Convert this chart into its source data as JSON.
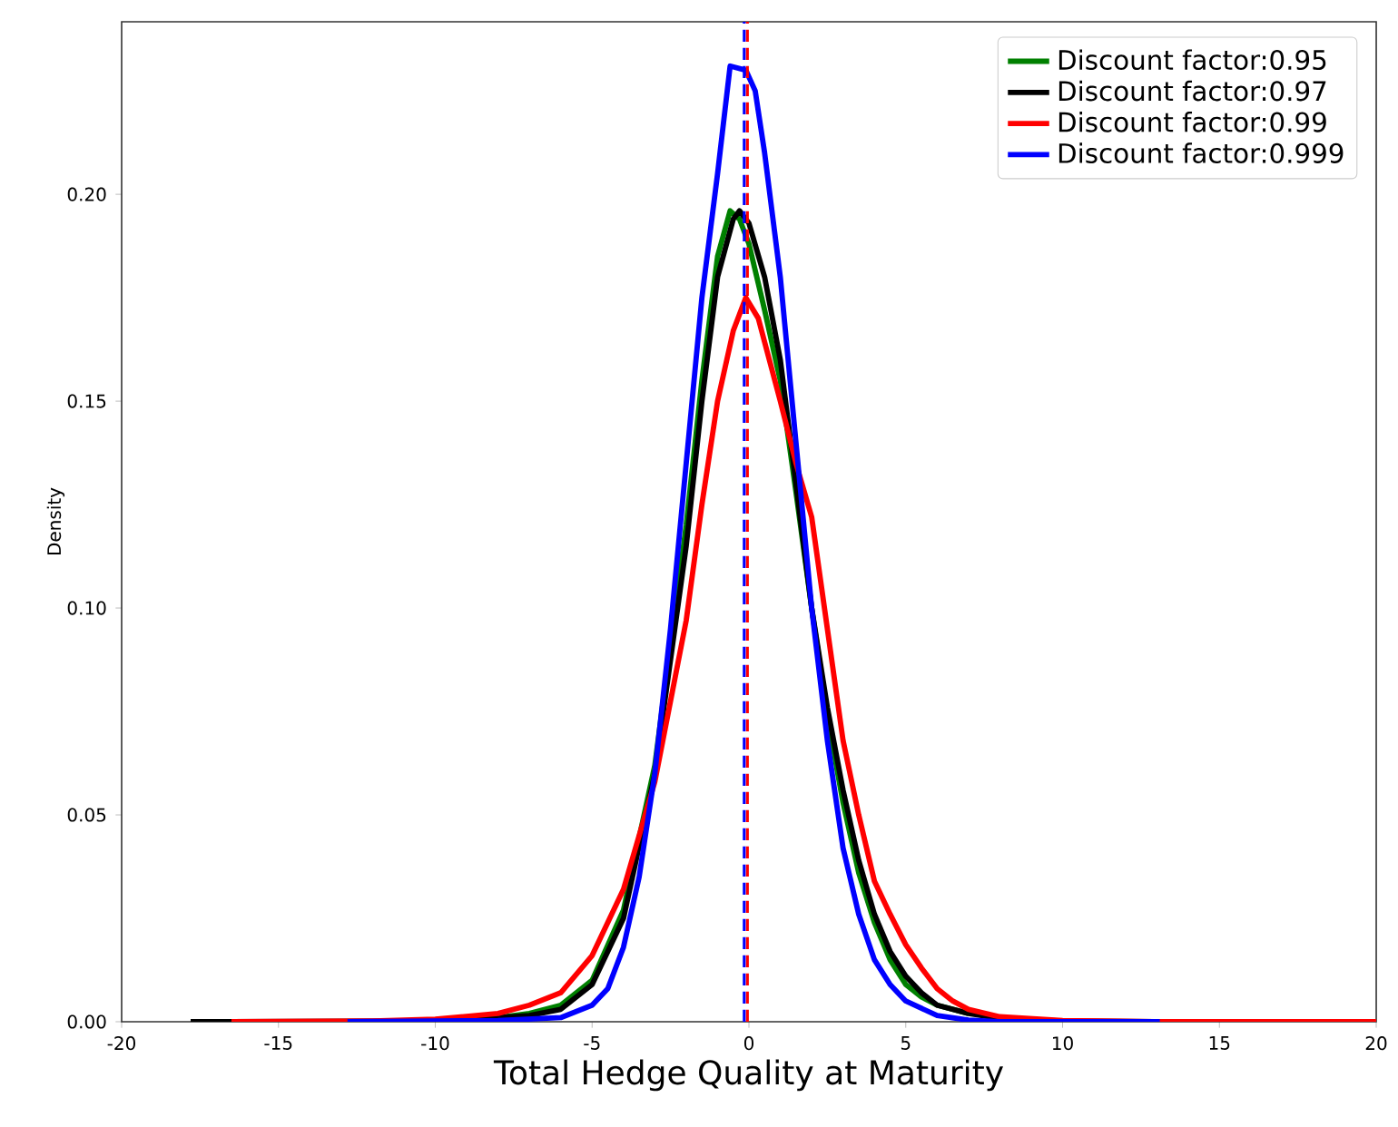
{
  "chart_data": {
    "type": "line",
    "xlabel": "Total Hedge Quality at Maturity",
    "ylabel": "Density",
    "xlim": [
      -20,
      20
    ],
    "xticks": [
      -20,
      -15,
      -10,
      -5,
      0,
      5,
      10,
      15,
      20
    ],
    "ylim": [
      0,
      0.2417
    ],
    "yticks": [
      {
        "value": 0,
        "label": "0.00"
      },
      {
        "value": 0.05,
        "label": "0.05"
      },
      {
        "value": 0.1,
        "label": "0.10"
      },
      {
        "value": 0.15,
        "label": "0.15"
      },
      {
        "value": 0.2,
        "label": "0.20"
      }
    ],
    "legend": "top right",
    "grid": false,
    "marker": "none",
    "line_style": "solid",
    "series": [
      {
        "name": "Discount factor:0.95",
        "color": "#008000",
        "x": [
          -10,
          -8,
          -7,
          -6,
          -5,
          -4,
          -3,
          -2,
          -1.5,
          -1,
          -0.6,
          -0.3,
          0,
          0.5,
          1,
          1.5,
          2,
          2.5,
          3,
          3.5,
          4,
          4.5,
          5,
          5.5,
          6,
          7
        ],
        "values": [
          0.0003,
          0.001,
          0.002,
          0.004,
          0.01,
          0.027,
          0.062,
          0.12,
          0.155,
          0.185,
          0.196,
          0.194,
          0.188,
          0.172,
          0.155,
          0.128,
          0.1,
          0.074,
          0.053,
          0.036,
          0.024,
          0.015,
          0.009,
          0.006,
          0.004,
          0.002
        ]
      },
      {
        "name": "Discount factor:0.97",
        "color": "#000000",
        "x": [
          -17.8,
          -12,
          -10,
          -8,
          -7,
          -6,
          -5,
          -4,
          -3,
          -2,
          -1.5,
          -1,
          -0.5,
          -0.3,
          0,
          0.5,
          1,
          1.5,
          2,
          2.5,
          3,
          3.5,
          4,
          4.5,
          5,
          5.5,
          6,
          7,
          8,
          10,
          13
        ],
        "values": [
          0,
          0.0001,
          0.0003,
          0.001,
          0.0015,
          0.003,
          0.009,
          0.025,
          0.06,
          0.115,
          0.15,
          0.18,
          0.194,
          0.196,
          0.193,
          0.18,
          0.16,
          0.13,
          0.1,
          0.076,
          0.056,
          0.039,
          0.026,
          0.017,
          0.011,
          0.007,
          0.004,
          0.002,
          0.0008,
          0.0002,
          0
        ]
      },
      {
        "name": "Discount factor:0.99",
        "color": "#ff0000",
        "x": [
          -16.5,
          -12,
          -10,
          -8,
          -7,
          -6,
          -5,
          -4,
          -3,
          -2,
          -1.5,
          -1,
          -0.5,
          -0.1,
          0.3,
          1,
          1.5,
          2,
          2.5,
          3,
          3.5,
          4,
          4.5,
          5,
          5.5,
          6,
          6.5,
          7,
          8,
          10,
          13,
          20
        ],
        "values": [
          0,
          0.0002,
          0.0006,
          0.002,
          0.004,
          0.007,
          0.016,
          0.032,
          0.058,
          0.097,
          0.125,
          0.15,
          0.167,
          0.175,
          0.17,
          0.15,
          0.135,
          0.122,
          0.095,
          0.068,
          0.05,
          0.034,
          0.026,
          0.0186,
          0.013,
          0.008,
          0.005,
          0.003,
          0.0012,
          0.0003,
          0,
          0
        ]
      },
      {
        "name": "Discount factor:0.999",
        "color": "#0000ff",
        "x": [
          -12.8,
          -8,
          -6,
          -5,
          -4.5,
          -4,
          -3.5,
          -3,
          -2.5,
          -2,
          -1.5,
          -1,
          -0.6,
          -0.1,
          0.2,
          0.5,
          1,
          1.5,
          2,
          2.5,
          3,
          3.5,
          4,
          4.5,
          5,
          6,
          7,
          8,
          13.1
        ],
        "values": [
          0,
          0.0003,
          0.001,
          0.004,
          0.008,
          0.018,
          0.035,
          0.06,
          0.095,
          0.135,
          0.175,
          0.205,
          0.231,
          0.23,
          0.225,
          0.21,
          0.18,
          0.14,
          0.1,
          0.068,
          0.042,
          0.026,
          0.015,
          0.009,
          0.005,
          0.0015,
          0.0004,
          0,
          0
        ]
      }
    ],
    "ref_lines": [
      {
        "axis": "x",
        "value": -0.05,
        "color": "#ff0000",
        "line_style": "dashed"
      },
      {
        "axis": "x",
        "value": -0.15,
        "color": "#0000ff",
        "line_style": "dashed"
      }
    ]
  }
}
